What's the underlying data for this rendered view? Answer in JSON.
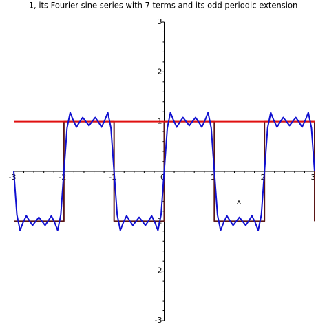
{
  "chart_data": {
    "type": "line",
    "title": "1, its Fourier sine series with 7 terms and its odd periodic extension",
    "x_label": "x",
    "xlim": [
      -3,
      3
    ],
    "ylim": [
      -3,
      3
    ],
    "xticks": [
      -3,
      -2,
      -1,
      0,
      1,
      2,
      3
    ],
    "yticks": [
      -3,
      -2,
      -1,
      1,
      2,
      3
    ],
    "series": [
      {
        "name": "1",
        "color": "#e01010",
        "x": [
          -3,
          3
        ],
        "values": [
          1,
          1
        ]
      },
      {
        "name": "odd periodic extension",
        "color": "#5a1616",
        "x": [
          -3,
          -2,
          -2,
          -1,
          -1,
          0,
          0,
          1,
          1,
          2,
          2,
          3,
          3
        ],
        "values": [
          -1,
          -1,
          1,
          1,
          -1,
          -1,
          1,
          1,
          -1,
          -1,
          1,
          1,
          -1
        ]
      },
      {
        "name": "Fourier sine series with 7 terms",
        "color": "#1010d0",
        "x": [
          -3,
          -2.9375,
          -2.875,
          -2.8125,
          -2.75,
          -2.6875,
          -2.625,
          -2.5625,
          -2.5,
          -2.4375,
          -2.375,
          -2.3125,
          -2.25,
          -2.1875,
          -2.125,
          -2.0625,
          -2,
          -1.9375,
          -1.875,
          -1.8125,
          -1.75,
          -1.6875,
          -1.625,
          -1.5625,
          -1.5,
          -1.4375,
          -1.375,
          -1.3125,
          -1.25,
          -1.1875,
          -1.125,
          -1.0625,
          -1,
          -0.9375,
          -0.875,
          -0.8125,
          -0.75,
          -0.6875,
          -0.625,
          -0.5625,
          -0.5,
          -0.4375,
          -0.375,
          -0.3125,
          -0.25,
          -0.1875,
          -0.125,
          -0.0625,
          0,
          0.0625,
          0.125,
          0.1875,
          0.25,
          0.3125,
          0.375,
          0.4375,
          0.5,
          0.5625,
          0.625,
          0.6875,
          0.75,
          0.8125,
          0.875,
          0.9375,
          1,
          1.0625,
          1.125,
          1.1875,
          1.25,
          1.3125,
          1.375,
          1.4375,
          1.5,
          1.5625,
          1.625,
          1.6875,
          1.75,
          1.8125,
          1.875,
          1.9375,
          2,
          2.0625,
          2.125,
          2.1875,
          2.25,
          2.3125,
          2.375,
          2.4375,
          2.5,
          2.5625,
          2.625,
          2.6875,
          2.75,
          2.8125,
          2.875,
          2.9375,
          3
        ],
        "values": [
          0,
          -0.8743,
          -1.1842,
          -1.0221,
          -0.8917,
          -0.9927,
          -1.0845,
          -1.0019,
          -0.9216,
          -1.0019,
          -1.0845,
          -0.9927,
          -0.8917,
          -1.0221,
          -1.1842,
          -0.8743,
          0,
          0.8743,
          1.1842,
          1.0221,
          0.8917,
          0.9927,
          1.0845,
          1.0019,
          0.9216,
          1.0019,
          1.0845,
          0.9927,
          0.8917,
          1.0221,
          1.1842,
          0.8743,
          0,
          -0.8743,
          -1.1842,
          -1.0221,
          -0.8917,
          -0.9927,
          -1.0845,
          -1.0019,
          -0.9216,
          -1.0019,
          -1.0845,
          -0.9927,
          -0.8917,
          -1.0221,
          -1.1842,
          -0.8743,
          0,
          0.8743,
          1.1842,
          1.0221,
          0.8917,
          0.9927,
          1.0845,
          1.0019,
          0.9216,
          1.0019,
          1.0845,
          0.9927,
          0.8917,
          1.0221,
          1.1842,
          0.8743,
          0,
          -0.8743,
          -1.1842,
          -1.0221,
          -0.8917,
          -0.9927,
          -1.0845,
          -1.0019,
          -0.9216,
          -1.0019,
          -1.0845,
          -0.9927,
          -0.8917,
          -1.0221,
          -1.1842,
          -0.8743,
          0,
          0.8743,
          1.1842,
          1.0221,
          0.8917,
          0.9927,
          1.0845,
          1.0019,
          0.9216,
          1.0019,
          1.0845,
          0.9927,
          0.8917,
          1.0221,
          1.1842,
          0.8743,
          0
        ]
      }
    ]
  }
}
